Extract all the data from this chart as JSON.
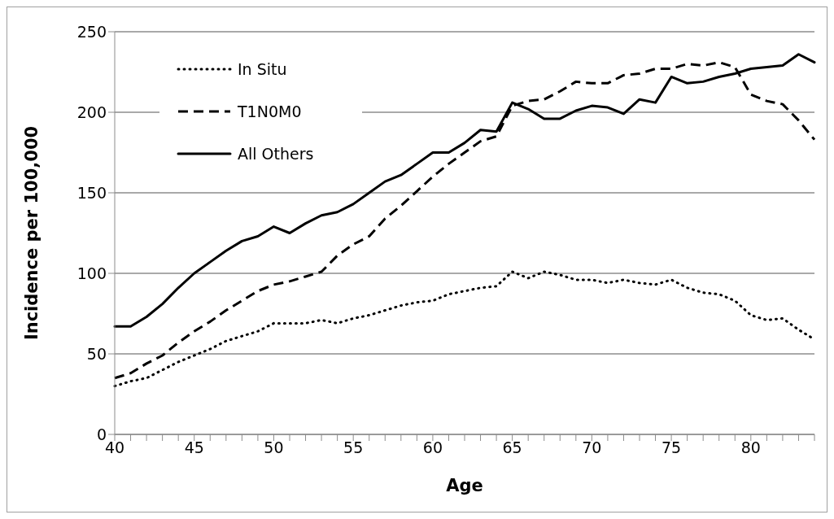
{
  "chart_data": {
    "type": "line",
    "xlabel": "Age",
    "ylabel": "Incidence per 100,000",
    "categories": [
      "40",
      null,
      null,
      null,
      null,
      "45",
      null,
      null,
      null,
      null,
      "50",
      null,
      null,
      null,
      null,
      "55",
      null,
      null,
      null,
      null,
      "60",
      null,
      null,
      null,
      null,
      "65",
      null,
      null,
      null,
      null,
      "70",
      null,
      null,
      null,
      null,
      "75",
      null,
      null,
      null,
      null,
      "80",
      null,
      null,
      null,
      null
    ],
    "series": [
      {
        "name": "In Situ",
        "color": "#000000",
        "line_style": "dotted",
        "values": [
          30,
          33,
          35,
          40,
          45,
          49,
          53,
          58,
          61,
          64,
          69,
          69,
          69,
          71,
          69,
          72,
          74,
          77,
          80,
          82,
          83,
          87,
          89,
          91,
          92,
          101,
          97,
          101,
          99,
          96,
          96,
          94,
          96,
          94,
          93,
          96,
          91,
          88,
          87,
          83,
          74,
          71,
          72,
          65,
          59
        ]
      },
      {
        "name": "T1N0M0",
        "color": "#000000",
        "line_style": "dashed",
        "values": [
          35,
          38,
          44,
          49,
          57,
          64,
          70,
          77,
          83,
          89,
          93,
          95,
          98,
          101,
          111,
          118,
          123,
          134,
          142,
          151,
          160,
          168,
          175,
          182,
          185,
          204,
          207,
          208,
          213,
          219,
          218,
          218,
          223,
          224,
          227,
          227,
          230,
          229,
          231,
          228,
          211,
          207,
          205,
          195,
          183
        ]
      },
      {
        "name": "All Others",
        "color": "#000000",
        "line_style": "solid",
        "values": [
          67,
          67,
          73,
          81,
          91,
          100,
          107,
          114,
          120,
          123,
          129,
          125,
          131,
          136,
          138,
          143,
          150,
          157,
          161,
          168,
          175,
          175,
          181,
          189,
          188,
          206,
          202,
          196,
          196,
          201,
          204,
          203,
          199,
          208,
          206,
          222,
          218,
          219,
          222,
          224,
          227,
          228,
          229,
          236,
          231
        ]
      }
    ],
    "ylim": [
      0,
      250
    ],
    "yticks": [
      0,
      50,
      100,
      150,
      200,
      250
    ],
    "grid": "y",
    "legend": "top left",
    "marker": "none"
  }
}
